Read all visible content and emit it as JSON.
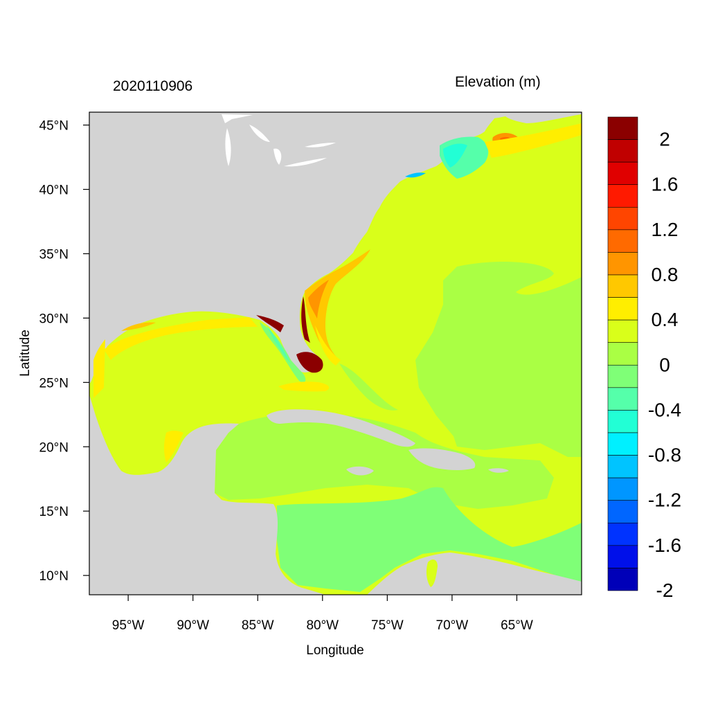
{
  "header": {
    "date_label": "2020110906",
    "variable_label": "Elevation (m)"
  },
  "axes": {
    "xlabel": "Longitude",
    "ylabel": "Latitude",
    "xlim": [
      -98,
      -60
    ],
    "ylim": [
      8.5,
      46
    ],
    "xticks": [
      {
        "value": -95,
        "label": "95°W"
      },
      {
        "value": -90,
        "label": "90°W"
      },
      {
        "value": -85,
        "label": "85°W"
      },
      {
        "value": -80,
        "label": "80°W"
      },
      {
        "value": -75,
        "label": "75°W"
      },
      {
        "value": -70,
        "label": "70°W"
      },
      {
        "value": -65,
        "label": "65°W"
      }
    ],
    "yticks": [
      {
        "value": 45,
        "label": "45°N"
      },
      {
        "value": 40,
        "label": "40°N"
      },
      {
        "value": 35,
        "label": "35°N"
      },
      {
        "value": 30,
        "label": "30°N"
      },
      {
        "value": 25,
        "label": "25°N"
      },
      {
        "value": 20,
        "label": "20°N"
      },
      {
        "value": 15,
        "label": "15°N"
      },
      {
        "value": 10,
        "label": "10°N"
      }
    ]
  },
  "colorbar": {
    "colors": [
      "#8b0000",
      "#c00000",
      "#e00000",
      "#ff1a00",
      "#ff4500",
      "#ff6a00",
      "#ff9500",
      "#ffc800",
      "#ffee00",
      "#d9ff1a",
      "#aaff44",
      "#7fff77",
      "#55ffaa",
      "#22ffd5",
      "#00f0ff",
      "#00c4ff",
      "#0096ff",
      "#0066ff",
      "#0033ff",
      "#0010ea",
      "#0000b8"
    ],
    "labels": [
      "2",
      "1.6",
      "1.2",
      "0.8",
      "0.4",
      "0",
      "-0.4",
      "-0.8",
      "-1.2",
      "-1.6",
      "-2"
    ]
  },
  "map": {
    "land_color": "#d3d3d3",
    "lake_color": "#ffffff",
    "ocean_base_color": "#d9ff1a"
  }
}
